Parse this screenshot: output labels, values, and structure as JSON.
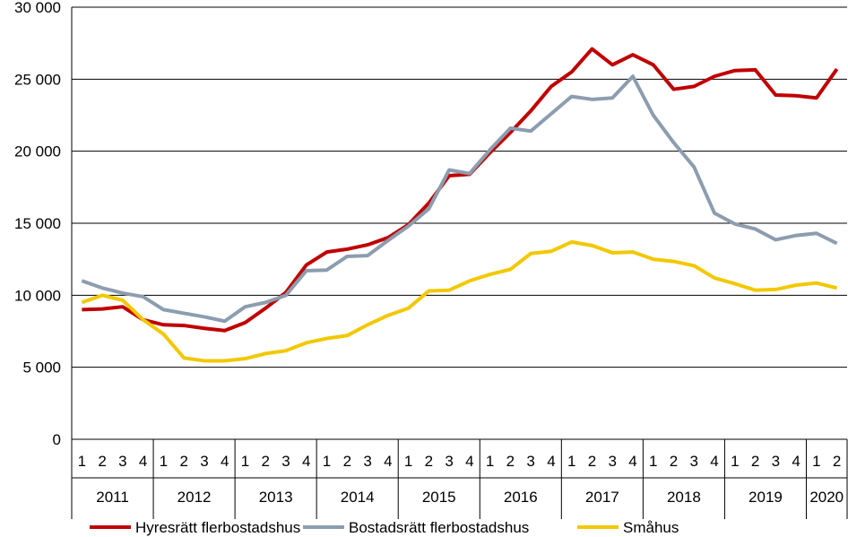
{
  "chart_data": {
    "type": "line",
    "title": "",
    "xlabel": "",
    "ylabel": "",
    "ylim": [
      0,
      30000
    ],
    "yticks": [
      0,
      5000,
      10000,
      15000,
      20000,
      25000,
      30000
    ],
    "ytick_labels": [
      "0",
      "5 000",
      "10 000",
      "15 000",
      "20 000",
      "25 000",
      "30 000"
    ],
    "grid": "horizontal",
    "legend_position": "bottom",
    "years": [
      {
        "label": "2011",
        "quarters": [
          "1",
          "2",
          "3",
          "4"
        ]
      },
      {
        "label": "2012",
        "quarters": [
          "1",
          "2",
          "3",
          "4"
        ]
      },
      {
        "label": "2013",
        "quarters": [
          "1",
          "2",
          "3",
          "4"
        ]
      },
      {
        "label": "2014",
        "quarters": [
          "1",
          "2",
          "3",
          "4"
        ]
      },
      {
        "label": "2015",
        "quarters": [
          "1",
          "2",
          "3",
          "4"
        ]
      },
      {
        "label": "2016",
        "quarters": [
          "1",
          "2",
          "3",
          "4"
        ]
      },
      {
        "label": "2017",
        "quarters": [
          "1",
          "2",
          "3",
          "4"
        ]
      },
      {
        "label": "2018",
        "quarters": [
          "1",
          "2",
          "3",
          "4"
        ]
      },
      {
        "label": "2019",
        "quarters": [
          "1",
          "2",
          "3",
          "4"
        ]
      },
      {
        "label": "2020",
        "quarters": [
          "1",
          "2"
        ]
      }
    ],
    "series": [
      {
        "name": "Hyresrätt flerbostadshus",
        "color": "#c00000",
        "values": [
          9000,
          9050,
          9200,
          8300,
          7950,
          7900,
          7700,
          7550,
          8100,
          9100,
          10200,
          12100,
          13000,
          13200,
          13500,
          14000,
          14900,
          16400,
          18300,
          18400,
          19900,
          21300,
          22800,
          24500,
          25500,
          27100,
          26000,
          26700,
          26000,
          24300,
          24500,
          25200,
          25600,
          25650,
          23900,
          23850,
          23700,
          25700
        ]
      },
      {
        "name": "Bostadsrätt flerbostadshus",
        "color": "#8c9daf",
        "values": [
          11000,
          10500,
          10150,
          9900,
          9000,
          8750,
          8500,
          8200,
          9200,
          9500,
          10000,
          11700,
          11750,
          12700,
          12750,
          13800,
          14800,
          16000,
          18700,
          18450,
          20100,
          21600,
          21400,
          22600,
          23800,
          23600,
          23700,
          25200,
          22500,
          20600,
          18900,
          15700,
          14950,
          14600,
          13850,
          14150,
          14300,
          13600
        ]
      },
      {
        "name": "Småhus",
        "color": "#f2c800",
        "values": [
          9500,
          10000,
          9650,
          8300,
          7300,
          5650,
          5450,
          5450,
          5600,
          5950,
          6150,
          6700,
          7000,
          7200,
          7950,
          8600,
          9100,
          10300,
          10350,
          11000,
          11450,
          11800,
          12900,
          13050,
          13700,
          13450,
          12950,
          13000,
          12500,
          12350,
          12050,
          11200,
          10800,
          10350,
          10400,
          10700,
          10850,
          10500
        ]
      }
    ]
  }
}
